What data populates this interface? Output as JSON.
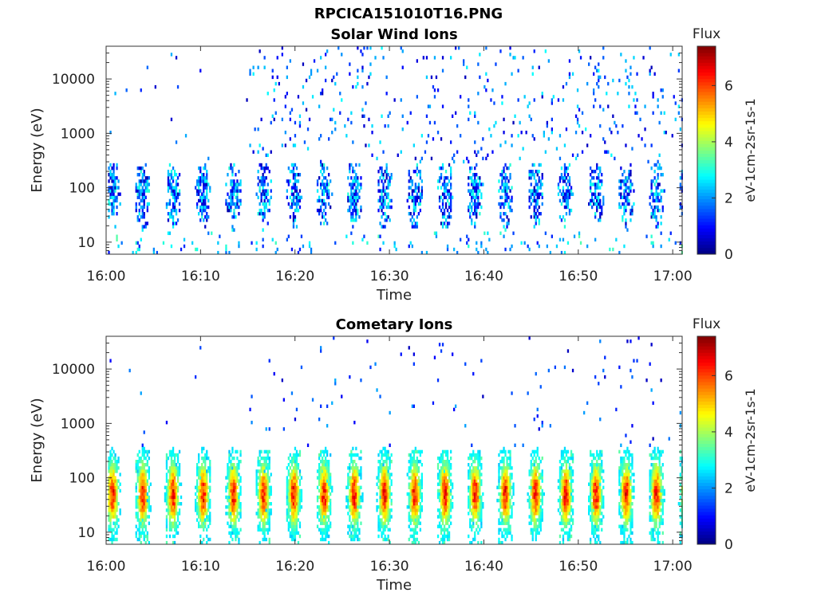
{
  "figure": {
    "title": "RPCICA151010T16.PNG"
  },
  "chart_data": [
    {
      "type": "heatmap",
      "title": "Solar Wind Ions",
      "xlabel": "Time",
      "ylabel": "Energy (eV)",
      "x_ticks": [
        "16:00",
        "16:10",
        "16:20",
        "16:30",
        "16:40",
        "16:50",
        "17:00"
      ],
      "xlim": [
        "16:00",
        "17:01"
      ],
      "y_scale": "log",
      "y_ticks": [
        "10",
        "100",
        "1000",
        "10000"
      ],
      "ylim": [
        6,
        40000
      ],
      "colorbar": {
        "label": "eV-1cm-2sr-1s-1",
        "title": "Flux",
        "ticks": [
          "0",
          "2",
          "4",
          "6"
        ],
        "range": [
          0,
          7.4
        ],
        "colormap": "jet"
      },
      "sweep_period_min": 3.2,
      "grid": false
    },
    {
      "type": "heatmap",
      "title": "Cometary Ions",
      "xlabel": "Time",
      "ylabel": "Energy (eV)",
      "x_ticks": [
        "16:00",
        "16:10",
        "16:20",
        "16:30",
        "16:40",
        "16:50",
        "17:00"
      ],
      "xlim": [
        "16:00",
        "17:01"
      ],
      "y_scale": "log",
      "y_ticks": [
        "10",
        "100",
        "1000",
        "10000"
      ],
      "ylim": [
        6,
        40000
      ],
      "colorbar": {
        "label": "eV-1cm-2sr-1s-1",
        "title": "Flux",
        "ticks": [
          "0",
          "2",
          "4",
          "6"
        ],
        "range": [
          0,
          7.4
        ],
        "colormap": "jet"
      },
      "sweep_period_min": 3.2,
      "grid": false
    }
  ]
}
